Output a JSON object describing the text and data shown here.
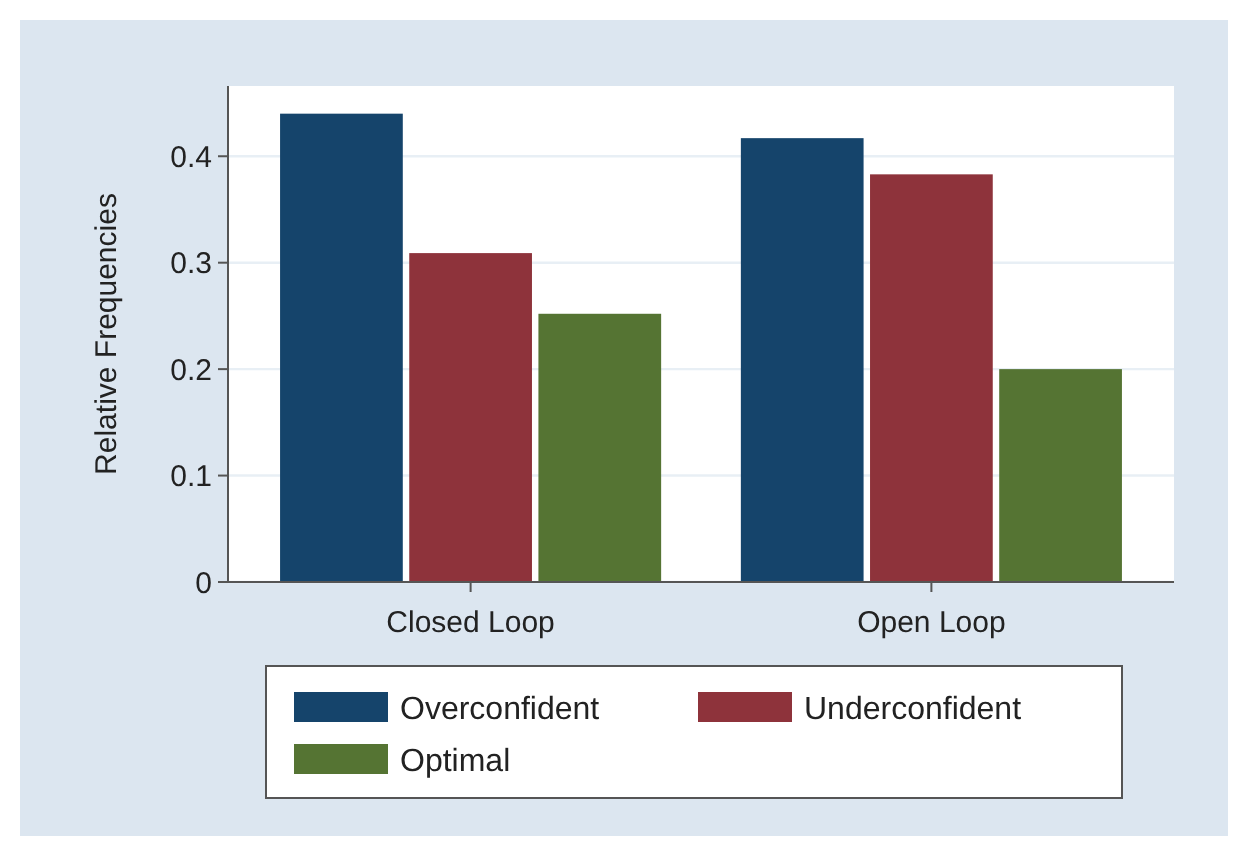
{
  "chart_data": {
    "type": "bar",
    "ylabel": "Relative Frequencies",
    "categories": [
      "Closed Loop",
      "Open Loop"
    ],
    "series": [
      {
        "name": "Overconfident",
        "color": "#15446b",
        "values": [
          0.44,
          0.417
        ]
      },
      {
        "name": "Underconfident",
        "color": "#8e333b",
        "values": [
          0.309,
          0.383
        ]
      },
      {
        "name": "Optimal",
        "color": "#557433",
        "values": [
          0.252,
          0.2
        ]
      }
    ],
    "ylim": [
      0,
      0.466
    ],
    "yticks": [
      0,
      0.1,
      0.2,
      0.3,
      0.4
    ],
    "grid": "y",
    "legend": "bottom"
  }
}
